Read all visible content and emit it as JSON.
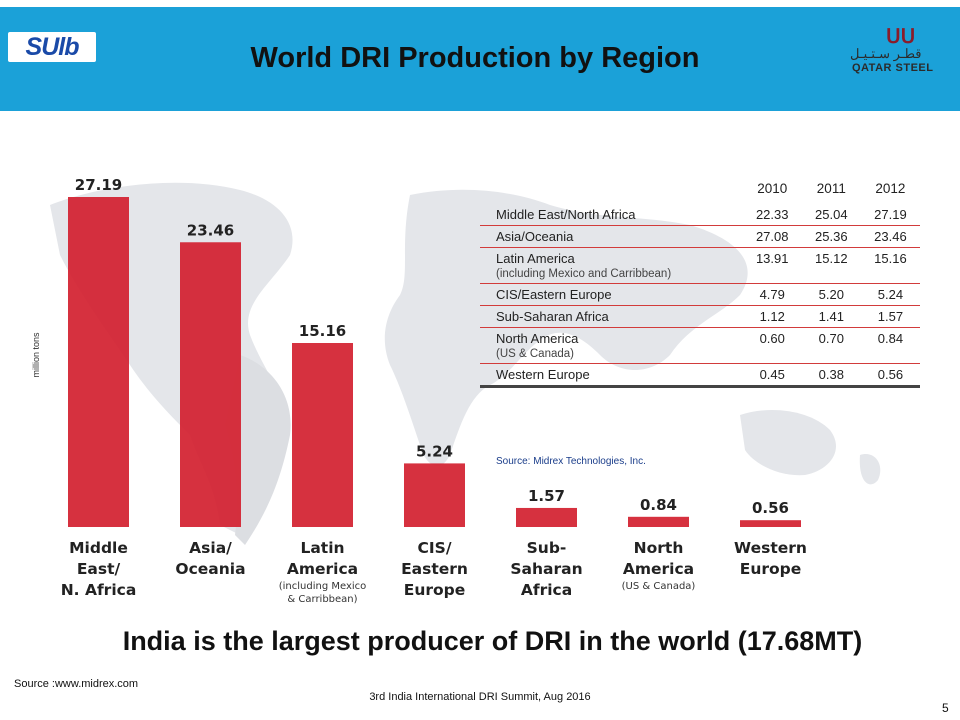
{
  "header": {
    "title": "World DRI Production by Region",
    "left_logo_text": "SUlb",
    "right_logo": {
      "mark": "ᑌᑌ",
      "arabic": "قطـر سـتـيـل",
      "english": "QATAR STEEL"
    },
    "color": "#1ba1d8"
  },
  "chart_data": {
    "type": "bar",
    "ylabel": "million tons",
    "categories": [
      {
        "lines": [
          "Middle",
          "East/",
          "N. Africa"
        ],
        "note": []
      },
      {
        "lines": [
          "Asia/",
          "Oceania"
        ],
        "note": []
      },
      {
        "lines": [
          "Latin",
          "America"
        ],
        "note": [
          "(including Mexico",
          "& Carribbean)"
        ]
      },
      {
        "lines": [
          "CIS/",
          "Eastern",
          "Europe"
        ],
        "note": []
      },
      {
        "lines": [
          "Sub-",
          "Saharan",
          "Africa"
        ],
        "note": []
      },
      {
        "lines": [
          "North",
          "America"
        ],
        "note": [
          "(US & Canada)"
        ]
      },
      {
        "lines": [
          "Western",
          "Europe"
        ],
        "note": []
      }
    ],
    "values": [
      27.19,
      23.46,
      15.16,
      5.24,
      1.57,
      0.84,
      0.56
    ],
    "value_labels": [
      "27.19",
      "23.46",
      "15.16",
      "5.24",
      "1.57",
      "0.84",
      "0.56"
    ],
    "bar_color": "#d3202f",
    "ylim": [
      0,
      27.19
    ]
  },
  "table": {
    "columns": [
      "2010",
      "2011",
      "2012"
    ],
    "rows": [
      {
        "region": "Middle East/North Africa",
        "sub": "",
        "values": [
          "22.33",
          "25.04",
          "27.19"
        ]
      },
      {
        "region": "Asia/Oceania",
        "sub": "",
        "values": [
          "27.08",
          "25.36",
          "23.46"
        ]
      },
      {
        "region": "Latin America",
        "sub": "(including Mexico and Carribbean)",
        "values": [
          "13.91",
          "15.12",
          "15.16"
        ]
      },
      {
        "region": "CIS/Eastern Europe",
        "sub": "",
        "values": [
          "4.79",
          "5.20",
          "5.24"
        ]
      },
      {
        "region": "Sub-Saharan Africa",
        "sub": "",
        "values": [
          "1.12",
          "1.41",
          "1.57"
        ]
      },
      {
        "region": "North America",
        "sub": "(US & Canada)",
        "values": [
          "0.60",
          "0.70",
          "0.84"
        ]
      },
      {
        "region": "Western Europe",
        "sub": "",
        "values": [
          "0.45",
          "0.38",
          "0.56"
        ]
      }
    ],
    "source": "Source: Midrex Technologies, Inc."
  },
  "conclusion": "India is the largest producer of DRI in the world (17.68MT)",
  "source": "Source :www.midrex.com",
  "footer": "3rd India International DRI Summit, Aug 2016",
  "page_number": "5"
}
